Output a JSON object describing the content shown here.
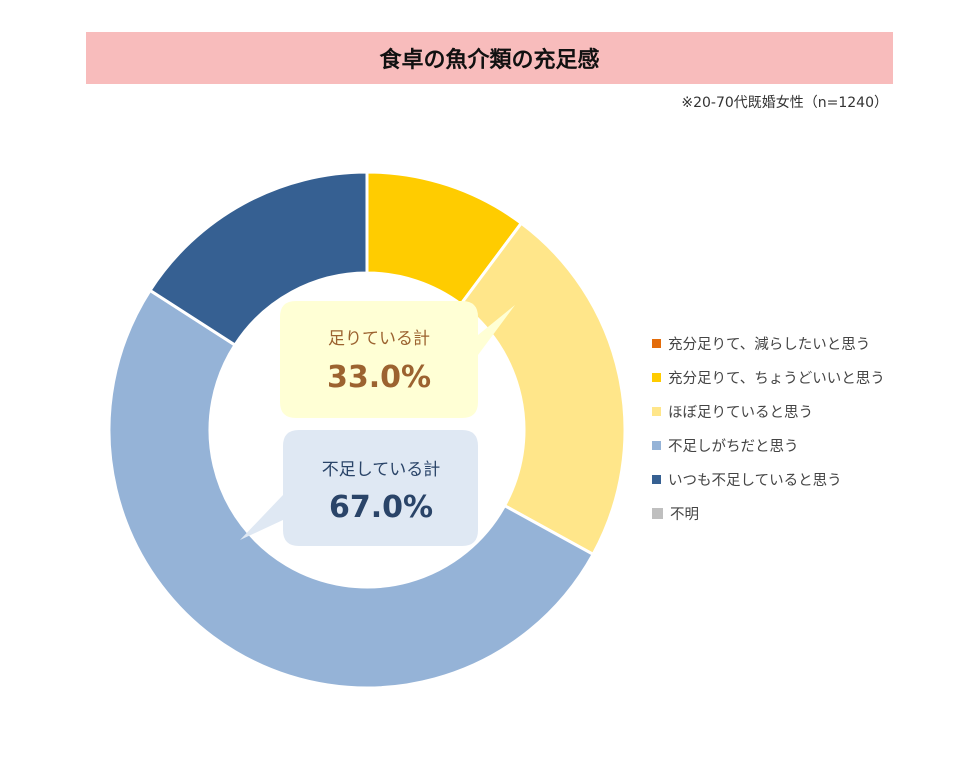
{
  "chart_data": {
    "type": "pie",
    "variant": "donut",
    "title": "食卓の魚介類の充足感",
    "note": "※20-70代既婚女性（n=1240）",
    "series": [
      {
        "name": "充分足りて、減らしたいと思う",
        "value": 0.0,
        "color": "#e36c0a"
      },
      {
        "name": "充分足りて、ちょうどいいと思う",
        "value": 10.2,
        "color": "#ffcc00"
      },
      {
        "name": "ほぼ足りていると思う",
        "value": 22.8,
        "color": "#ffe68a"
      },
      {
        "name": "不足しがちだと思う",
        "value": 51.1,
        "color": "#95b3d7"
      },
      {
        "name": "いつも不足していると思う",
        "value": 15.9,
        "color": "#366092"
      },
      {
        "name": "不明",
        "value": 0.0,
        "color": "#bfbfbf"
      }
    ],
    "legend_position": "right",
    "annotations": [
      {
        "label": "足りている計",
        "value": "33.0%",
        "bg": "#ffffd5",
        "color": "#9c6330"
      },
      {
        "label": "不足している計",
        "value": "67.0%",
        "bg": "#dfe8f3",
        "color": "#2a4468"
      }
    ]
  }
}
